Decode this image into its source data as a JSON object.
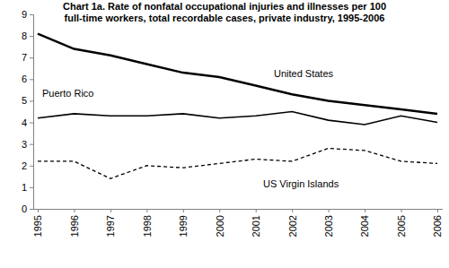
{
  "chart_data": {
    "type": "line",
    "title": [
      "Chart 1a. Rate of nonfatal occupational injuries and illnesses per 100",
      "full-time workers, total recordable cases, private industry, 1995-2006"
    ],
    "categories": [
      "1995",
      "1996",
      "1997",
      "1998",
      "1999",
      "2000",
      "2001",
      "2002",
      "2003",
      "2004",
      "2005",
      "2006"
    ],
    "series": [
      {
        "name": "United States",
        "color": "#000000",
        "line_style": "solid",
        "values": [
          8.1,
          7.4,
          7.1,
          6.7,
          6.3,
          6.1,
          5.7,
          5.3,
          5.0,
          4.8,
          4.6,
          4.4
        ]
      },
      {
        "name": "Puerto Rico",
        "color": "#000000",
        "line_style": "solid",
        "values": [
          4.2,
          4.4,
          4.3,
          4.3,
          4.4,
          4.2,
          4.3,
          4.5,
          4.1,
          3.9,
          4.3,
          4.0
        ]
      },
      {
        "name": "US Virgin Islands",
        "color": "#000000",
        "line_style": "dashed",
        "values": [
          2.2,
          2.2,
          1.4,
          2.0,
          1.9,
          2.1,
          2.3,
          2.2,
          2.8,
          2.7,
          2.2,
          2.1
        ]
      }
    ],
    "ylim": [
      0,
      9
    ],
    "yticks": [
      0,
      1,
      2,
      3,
      4,
      5,
      6,
      7,
      8,
      9
    ],
    "grid": false
  }
}
